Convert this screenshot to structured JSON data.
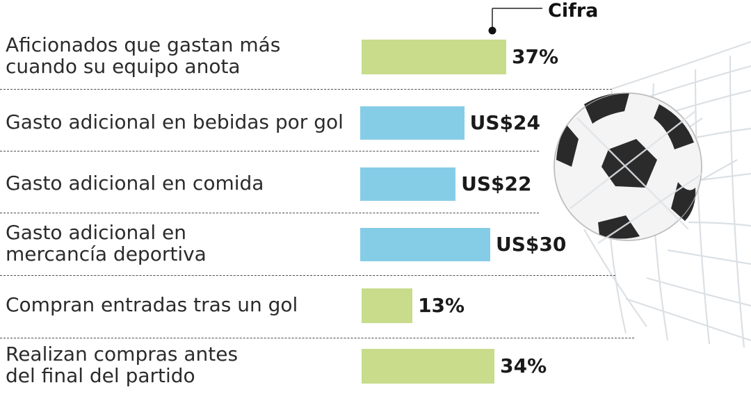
{
  "legend": {
    "title": "Cifra"
  },
  "colors": {
    "percent": "#c8dc8c",
    "currency": "#85cde6"
  },
  "chart_data": {
    "type": "bar",
    "orientation": "horizontal",
    "legend_label": "Cifra",
    "rows": [
      {
        "label": "Aficionados que gastan más\ncuando su equipo anota",
        "value": 37,
        "unit": "percent",
        "value_label": "37%"
      },
      {
        "label": "Gasto adicional en bebidas por gol",
        "value": 24,
        "unit": "USD",
        "value_label": "US$24"
      },
      {
        "label": "Gasto adicional en comida",
        "value": 22,
        "unit": "USD",
        "value_label": "US$22"
      },
      {
        "label": "Gasto adicional en\nmercancía deportiva",
        "value": 30,
        "unit": "USD",
        "value_label": "US$30"
      },
      {
        "label": "Compran entradas tras un gol",
        "value": 13,
        "unit": "percent",
        "value_label": "13%"
      },
      {
        "label": "Realizan compras antes\ndel final del partido",
        "value": 34,
        "unit": "percent",
        "value_label": "34%"
      }
    ]
  }
}
